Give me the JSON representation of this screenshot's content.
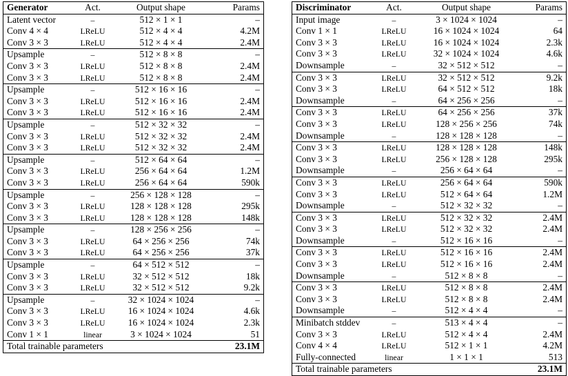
{
  "generator": {
    "headers": {
      "name": "Generator",
      "act": "Act.",
      "shape": "Output shape",
      "params": "Params"
    },
    "groups": [
      [
        {
          "layer": "Latent vector",
          "act": "–",
          "shape": "512 × 1 × 1",
          "params": "–"
        },
        {
          "layer": "Conv 4 × 4",
          "act": "LReLU",
          "shape": "512 × 4 × 4",
          "params": "4.2M"
        },
        {
          "layer": "Conv 3 × 3",
          "act": "LReLU",
          "shape": "512 × 4 × 4",
          "params": "2.4M"
        }
      ],
      [
        {
          "layer": "Upsample",
          "act": "–",
          "shape": "512 × 8 × 8",
          "params": "–"
        },
        {
          "layer": "Conv 3 × 3",
          "act": "LReLU",
          "shape": "512 × 8 × 8",
          "params": "2.4M"
        },
        {
          "layer": "Conv 3 × 3",
          "act": "LReLU",
          "shape": "512 × 8 × 8",
          "params": "2.4M"
        }
      ],
      [
        {
          "layer": "Upsample",
          "act": "–",
          "shape": "512 × 16 × 16",
          "params": "–"
        },
        {
          "layer": "Conv 3 × 3",
          "act": "LReLU",
          "shape": "512 × 16 × 16",
          "params": "2.4M"
        },
        {
          "layer": "Conv 3 × 3",
          "act": "LReLU",
          "shape": "512 × 16 × 16",
          "params": "2.4M"
        }
      ],
      [
        {
          "layer": "Upsample",
          "act": "–",
          "shape": "512 × 32 × 32",
          "params": "–"
        },
        {
          "layer": "Conv 3 × 3",
          "act": "LReLU",
          "shape": "512 × 32 × 32",
          "params": "2.4M"
        },
        {
          "layer": "Conv 3 × 3",
          "act": "LReLU",
          "shape": "512 × 32 × 32",
          "params": "2.4M"
        }
      ],
      [
        {
          "layer": "Upsample",
          "act": "–",
          "shape": "512 × 64 × 64",
          "params": "–"
        },
        {
          "layer": "Conv 3 × 3",
          "act": "LReLU",
          "shape": "256 × 64 × 64",
          "params": "1.2M"
        },
        {
          "layer": "Conv 3 × 3",
          "act": "LReLU",
          "shape": "256 × 64 × 64",
          "params": "590k"
        }
      ],
      [
        {
          "layer": "Upsample",
          "act": "–",
          "shape": "256 × 128 × 128",
          "params": "–"
        },
        {
          "layer": "Conv 3 × 3",
          "act": "LReLU",
          "shape": "128 × 128 × 128",
          "params": "295k"
        },
        {
          "layer": "Conv 3 × 3",
          "act": "LReLU",
          "shape": "128 × 128 × 128",
          "params": "148k"
        }
      ],
      [
        {
          "layer": "Upsample",
          "act": "–",
          "shape": "128 × 256 × 256",
          "params": "–"
        },
        {
          "layer": "Conv 3 × 3",
          "act": "LReLU",
          "shape": "64 × 256 × 256",
          "params": "74k"
        },
        {
          "layer": "Conv 3 × 3",
          "act": "LReLU",
          "shape": "64 × 256 × 256",
          "params": "37k"
        }
      ],
      [
        {
          "layer": "Upsample",
          "act": "–",
          "shape": "64 × 512 × 512",
          "params": "–"
        },
        {
          "layer": "Conv 3 × 3",
          "act": "LReLU",
          "shape": "32 × 512 × 512",
          "params": "18k"
        },
        {
          "layer": "Conv 3 × 3",
          "act": "LReLU",
          "shape": "32 × 512 × 512",
          "params": "9.2k"
        }
      ],
      [
        {
          "layer": "Upsample",
          "act": "–",
          "shape": "32 × 1024 × 1024",
          "params": "–"
        },
        {
          "layer": "Conv 3 × 3",
          "act": "LReLU",
          "shape": "16 × 1024 × 1024",
          "params": "4.6k"
        },
        {
          "layer": "Conv 3 × 3",
          "act": "LReLU",
          "shape": "16 × 1024 × 1024",
          "params": "2.3k"
        },
        {
          "layer": "Conv 1 × 1",
          "act": "linear",
          "shape": "3 × 1024 × 1024",
          "params": "51"
        }
      ]
    ],
    "total": {
      "label": "Total trainable parameters",
      "value": "23.1M"
    }
  },
  "discriminator": {
    "headers": {
      "name": "Discriminator",
      "act": "Act.",
      "shape": "Output shape",
      "params": "Params"
    },
    "groups": [
      [
        {
          "layer": "Input image",
          "act": "–",
          "shape": "3 × 1024 × 1024",
          "params": "–"
        },
        {
          "layer": "Conv 1 × 1",
          "act": "LReLU",
          "shape": "16 × 1024 × 1024",
          "params": "64"
        },
        {
          "layer": "Conv 3 × 3",
          "act": "LReLU",
          "shape": "16 × 1024 × 1024",
          "params": "2.3k"
        },
        {
          "layer": "Conv 3 × 3",
          "act": "LReLU",
          "shape": "32 × 1024 × 1024",
          "params": "4.6k"
        },
        {
          "layer": "Downsample",
          "act": "–",
          "shape": "32 × 512 × 512",
          "params": "–"
        }
      ],
      [
        {
          "layer": "Conv 3 × 3",
          "act": "LReLU",
          "shape": "32 × 512 × 512",
          "params": "9.2k"
        },
        {
          "layer": "Conv 3 × 3",
          "act": "LReLU",
          "shape": "64 × 512 × 512",
          "params": "18k"
        },
        {
          "layer": "Downsample",
          "act": "–",
          "shape": "64 × 256 × 256",
          "params": "–"
        }
      ],
      [
        {
          "layer": "Conv 3 × 3",
          "act": "LReLU",
          "shape": "64 × 256 × 256",
          "params": "37k"
        },
        {
          "layer": "Conv 3 × 3",
          "act": "LReLU",
          "shape": "128 × 256 × 256",
          "params": "74k"
        },
        {
          "layer": "Downsample",
          "act": "–",
          "shape": "128 × 128 × 128",
          "params": "–"
        }
      ],
      [
        {
          "layer": "Conv 3 × 3",
          "act": "LReLU",
          "shape": "128 × 128 × 128",
          "params": "148k"
        },
        {
          "layer": "Conv 3 × 3",
          "act": "LReLU",
          "shape": "256 × 128 × 128",
          "params": "295k"
        },
        {
          "layer": "Downsample",
          "act": "–",
          "shape": "256 × 64 × 64",
          "params": "–"
        }
      ],
      [
        {
          "layer": "Conv 3 × 3",
          "act": "LReLU",
          "shape": "256 × 64 × 64",
          "params": "590k"
        },
        {
          "layer": "Conv 3 × 3",
          "act": "LReLU",
          "shape": "512 × 64 × 64",
          "params": "1.2M"
        },
        {
          "layer": "Downsample",
          "act": "–",
          "shape": "512 × 32 × 32",
          "params": "–"
        }
      ],
      [
        {
          "layer": "Conv 3 × 3",
          "act": "LReLU",
          "shape": "512 × 32 × 32",
          "params": "2.4M"
        },
        {
          "layer": "Conv 3 × 3",
          "act": "LReLU",
          "shape": "512 × 32 × 32",
          "params": "2.4M"
        },
        {
          "layer": "Downsample",
          "act": "–",
          "shape": "512 × 16 × 16",
          "params": "–"
        }
      ],
      [
        {
          "layer": "Conv 3 × 3",
          "act": "LReLU",
          "shape": "512 × 16 × 16",
          "params": "2.4M"
        },
        {
          "layer": "Conv 3 × 3",
          "act": "LReLU",
          "shape": "512 × 16 × 16",
          "params": "2.4M"
        },
        {
          "layer": "Downsample",
          "act": "–",
          "shape": "512 × 8 × 8",
          "params": "–"
        }
      ],
      [
        {
          "layer": "Conv 3 × 3",
          "act": "LReLU",
          "shape": "512 × 8 × 8",
          "params": "2.4M"
        },
        {
          "layer": "Conv 3 × 3",
          "act": "LReLU",
          "shape": "512 × 8 × 8",
          "params": "2.4M"
        },
        {
          "layer": "Downsample",
          "act": "–",
          "shape": "512 × 4 × 4",
          "params": "–"
        }
      ],
      [
        {
          "layer": "Minibatch stddev",
          "act": "–",
          "shape": "513 × 4 × 4",
          "params": "–"
        },
        {
          "layer": "Conv 3 × 3",
          "act": "LReLU",
          "shape": "512 × 4 × 4",
          "params": "2.4M"
        },
        {
          "layer": "Conv 4 × 4",
          "act": "LReLU",
          "shape": "512 × 1 × 1",
          "params": "4.2M"
        },
        {
          "layer": "Fully-connected",
          "act": "linear",
          "shape": "1 × 1 × 1",
          "params": "513"
        }
      ]
    ],
    "total": {
      "label": "Total trainable parameters",
      "value": "23.1M"
    }
  }
}
